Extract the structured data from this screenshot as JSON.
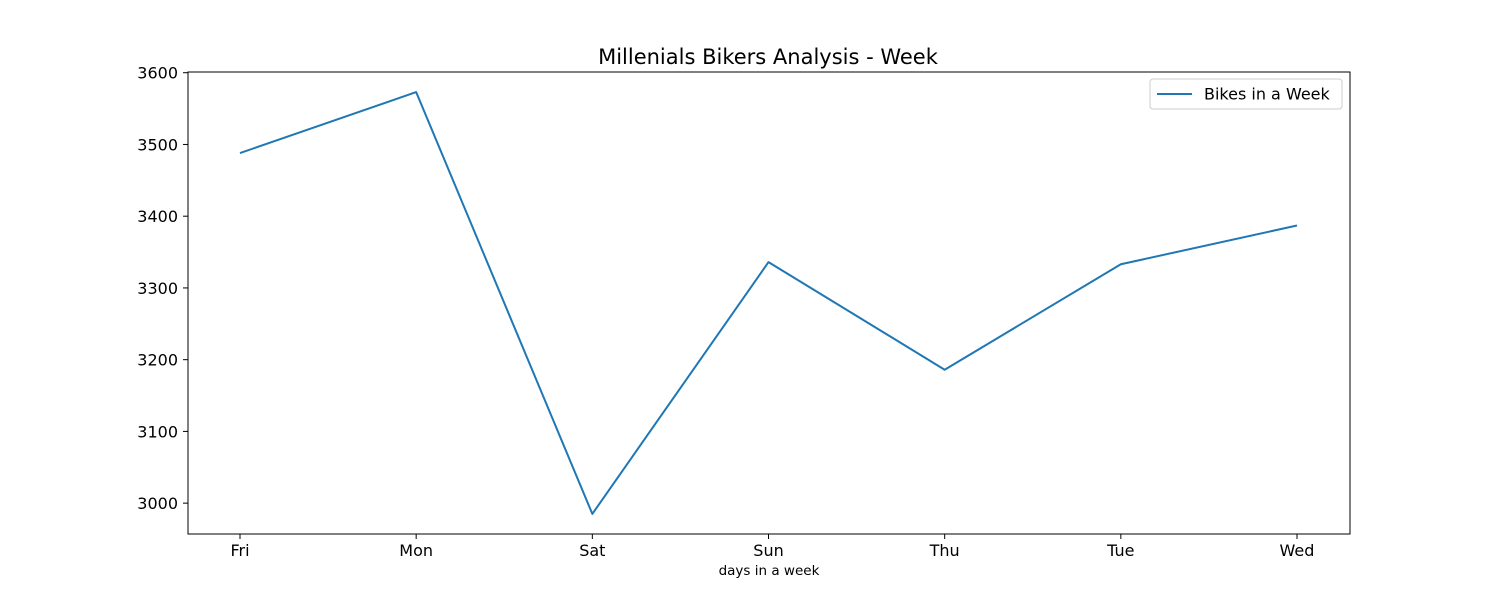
{
  "chart_data": {
    "type": "line",
    "title": "Millenials Bikers Analysis - Week",
    "xlabel": "days in a week",
    "ylabel": "",
    "categories": [
      "Fri",
      "Mon",
      "Sat",
      "Sun",
      "Thu",
      "Tue",
      "Wed"
    ],
    "series": [
      {
        "name": "Bikes in a Week",
        "values": [
          3488,
          3573,
          2985,
          3336,
          3186,
          3333,
          3387
        ],
        "color": "#1f77b4"
      }
    ],
    "yticks": [
      3000,
      3100,
      3200,
      3300,
      3400,
      3500,
      3600
    ],
    "ylim": [
      2957,
      3601
    ],
    "grid": false,
    "legend_position": "top-right"
  }
}
